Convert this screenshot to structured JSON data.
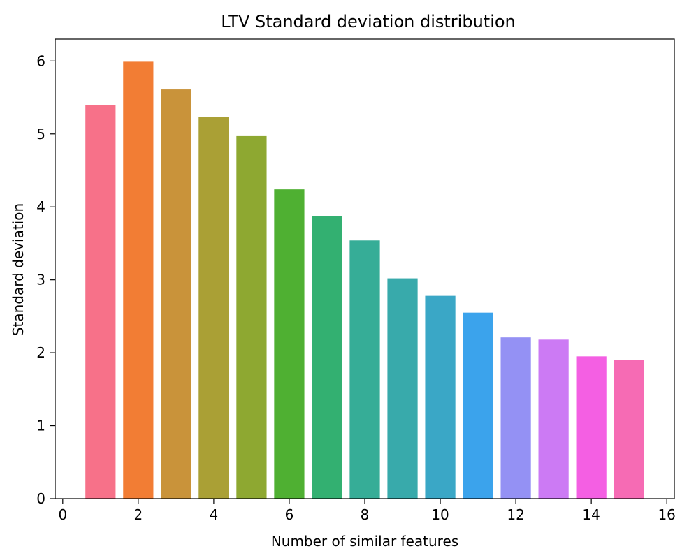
{
  "chart_data": {
    "type": "bar",
    "title": "LTV Standard deviation distribution",
    "xlabel": "Number of similar features",
    "ylabel": "Standard deviation",
    "xlim": [
      -0.2,
      16.2
    ],
    "ylim": [
      0,
      6.3
    ],
    "xticks": [
      0,
      2,
      4,
      6,
      8,
      10,
      12,
      14,
      16
    ],
    "yticks": [
      0,
      1,
      2,
      3,
      4,
      5,
      6
    ],
    "grid": false,
    "bar_width": 0.8,
    "x": [
      1,
      2,
      3,
      4,
      5,
      6,
      7,
      8,
      9,
      10,
      11,
      12,
      13,
      14,
      15
    ],
    "values": [
      5.4,
      5.99,
      5.61,
      5.23,
      4.97,
      4.24,
      3.87,
      3.54,
      3.02,
      2.78,
      2.55,
      2.21,
      2.18,
      1.95,
      1.9
    ],
    "colors": [
      "#f77189",
      "#f27d34",
      "#c9933a",
      "#aaa035",
      "#8ea831",
      "#4fb032",
      "#33b071",
      "#36ad97",
      "#38aaab",
      "#3aa7c6",
      "#3ba3ec",
      "#9491f4",
      "#cc7af4",
      "#f45fe3",
      "#f66bb4"
    ]
  }
}
